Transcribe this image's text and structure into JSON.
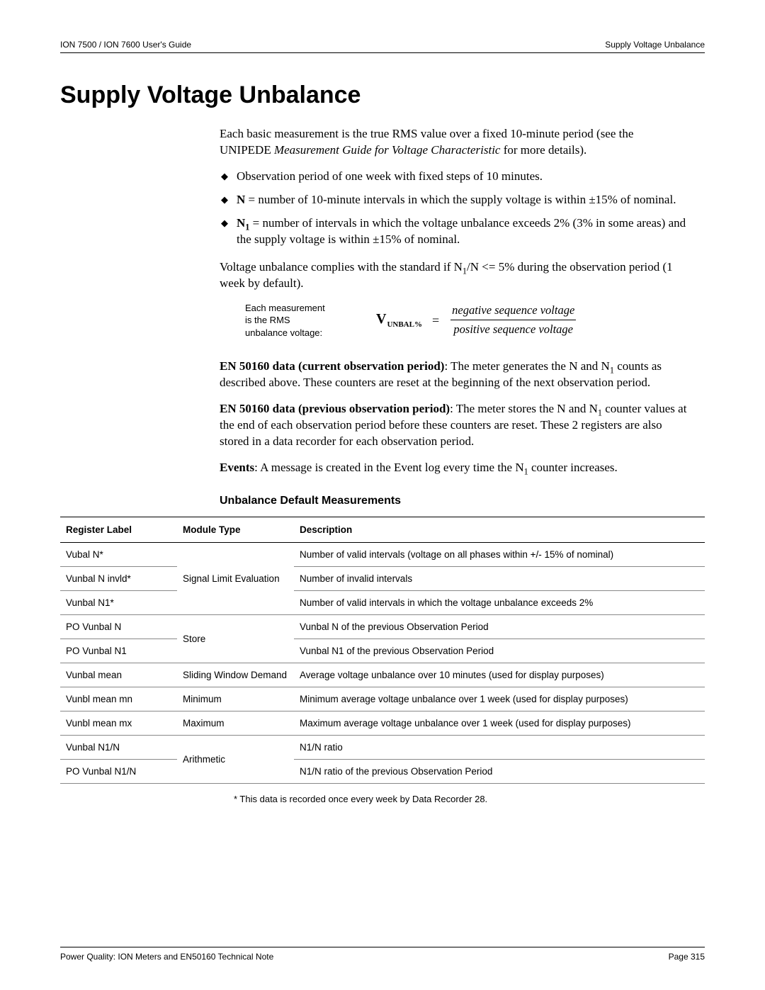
{
  "header": {
    "left": "ION 7500 / ION 7600 User's Guide",
    "right": "Supply Voltage Unbalance"
  },
  "title": "Supply Voltage Unbalance",
  "intro": {
    "p1_a": "Each basic measurement is the true RMS value over a fixed 10-minute period (see the UNIPEDE ",
    "p1_italic": "Measurement Guide for Voltage Characteristic",
    "p1_b": " for more details).",
    "b1": "Observation period of one week with fixed steps of 10 minutes.",
    "b2_bold": "N",
    "b2_rest": " = number of 10-minute intervals in which the supply voltage is within ±15% of nominal.",
    "b3_bold": "N",
    "b3_sub": "1",
    "b3_rest": " = number of intervals in which the voltage unbalance exceeds 2% (3% in some areas) and the supply voltage is within ±15% of nominal.",
    "p2_a": "Voltage unbalance complies with the standard if N",
    "p2_sub": "1",
    "p2_b": "/N <= 5% during the observation period (1 week by default)."
  },
  "formula": {
    "note_l1": "Each measurement",
    "note_l2": "is the RMS",
    "note_l3": "unbalance voltage:",
    "lhs": "V",
    "lhs_sub": "UNBAL%",
    "eq": "=",
    "num": "negative sequence voltage",
    "den": "positive sequence voltage"
  },
  "sections": {
    "s1_bold": "EN 50160 data (current observation period)",
    "s1_a": ": The meter generates the N and N",
    "s1_sub": "1",
    "s1_b": " counts as described above. These counters are reset at the beginning of the next observation period.",
    "s2_bold": "EN 50160 data (previous observation period)",
    "s2_a": ": The meter stores the N and N",
    "s2_sub": "1",
    "s2_b": " counter values at the end of each observation period before these counters are reset. These 2 registers are also stored in a data recorder for each observation period.",
    "s3_bold": "Events",
    "s3_a": ": A message is created in the Event log every time the N",
    "s3_sub": "1",
    "s3_b": " counter increases."
  },
  "table": {
    "heading": "Unbalance Default Measurements",
    "col1": "Register Label",
    "col2": "Module Type",
    "col3": "Description",
    "rows": [
      {
        "reg": "Vubal N*",
        "desc": "Number of valid intervals (voltage on all phases within +/- 15% of nominal)"
      },
      {
        "reg": "Vunbal N invld*",
        "desc": "Number of invalid intervals"
      },
      {
        "reg": "Vunbal N1*",
        "desc": "Number of valid intervals in which the voltage unbalance exceeds 2%"
      },
      {
        "reg": "PO Vunbal N",
        "desc": "Vunbal N of the previous Observation Period"
      },
      {
        "reg": "PO Vunbal N1",
        "desc": "Vunbal N1 of the previous Observation Period"
      },
      {
        "reg": "Vunbal mean",
        "desc": "Average voltage unbalance over 10 minutes (used for display purposes)"
      },
      {
        "reg": "Vunbl mean mn",
        "desc": "Minimum average voltage unbalance over 1 week (used for display purposes)"
      },
      {
        "reg": "Vunbl mean mx",
        "desc": "Maximum average voltage unbalance over 1 week (used for display purposes)"
      },
      {
        "reg": "Vunbal N1/N",
        "desc": "N1/N ratio"
      },
      {
        "reg": "PO Vunbal N1/N",
        "desc": "N1/N ratio of the previous Observation Period"
      }
    ],
    "modules": {
      "m1": "Signal Limit Evaluation",
      "m2": "Store",
      "m3": "Sliding Window Demand",
      "m4": "Minimum",
      "m5": "Maximum",
      "m6": "Arithmetic"
    },
    "footnote": "*  This data is recorded once every week by Data Recorder 28."
  },
  "footer": {
    "left": "Power Quality: ION Meters and EN50160 Technical Note",
    "right": "Page 315"
  }
}
